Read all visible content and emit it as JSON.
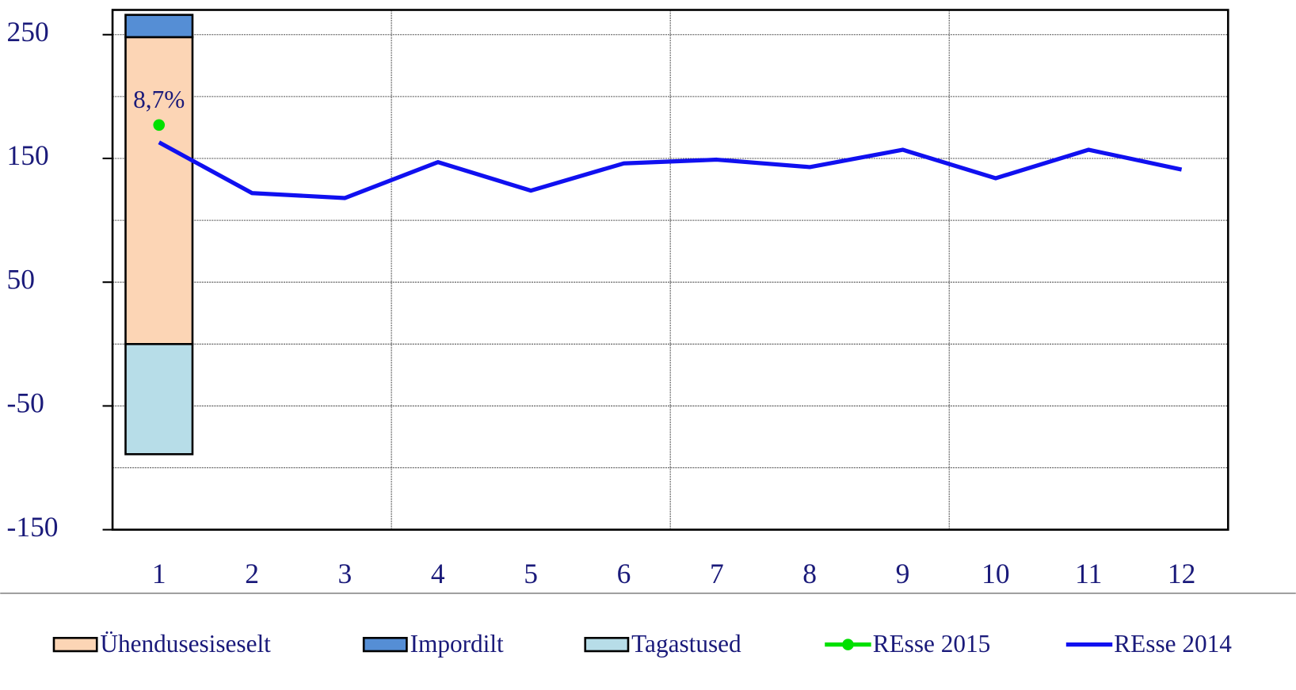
{
  "chart_data": {
    "type": "bar",
    "categories": [
      "1",
      "2",
      "3",
      "4",
      "5",
      "6",
      "7",
      "8",
      "9",
      "10",
      "11",
      "12"
    ],
    "series": [
      {
        "name": "Ühendusesiseselt",
        "type": "bar",
        "color": "#fcd5b5",
        "values": [
          248,
          null,
          null,
          null,
          null,
          null,
          null,
          null,
          null,
          null,
          null,
          null
        ]
      },
      {
        "name": "Impordilt",
        "type": "bar",
        "color": "#558ed5",
        "values": [
          18,
          null,
          null,
          null,
          null,
          null,
          null,
          null,
          null,
          null,
          null,
          null
        ]
      },
      {
        "name": "Tagastused",
        "type": "bar",
        "color": "#b7dde8",
        "values": [
          -89,
          null,
          null,
          null,
          null,
          null,
          null,
          null,
          null,
          null,
          null,
          null
        ]
      },
      {
        "name": "REsse 2015",
        "type": "line",
        "marker": true,
        "color": "#00e000",
        "values": [
          177,
          null,
          null,
          null,
          null,
          null,
          null,
          null,
          null,
          null,
          null,
          null
        ],
        "value_labels": [
          "8,7%",
          null,
          null,
          null,
          null,
          null,
          null,
          null,
          null,
          null,
          null,
          null
        ]
      },
      {
        "name": "REsse 2014",
        "type": "line",
        "marker": false,
        "color": "#1010f0",
        "values": [
          163,
          122,
          118,
          147,
          124,
          146,
          149,
          143,
          157,
          134,
          157,
          141
        ]
      }
    ],
    "ylim": [
      -150,
      270
    ],
    "yticks": [
      -150,
      -50,
      50,
      150,
      250
    ],
    "minor_yticks": [
      -100,
      0,
      100,
      200
    ],
    "grid": true,
    "stacked": true,
    "legend": "bottom"
  }
}
